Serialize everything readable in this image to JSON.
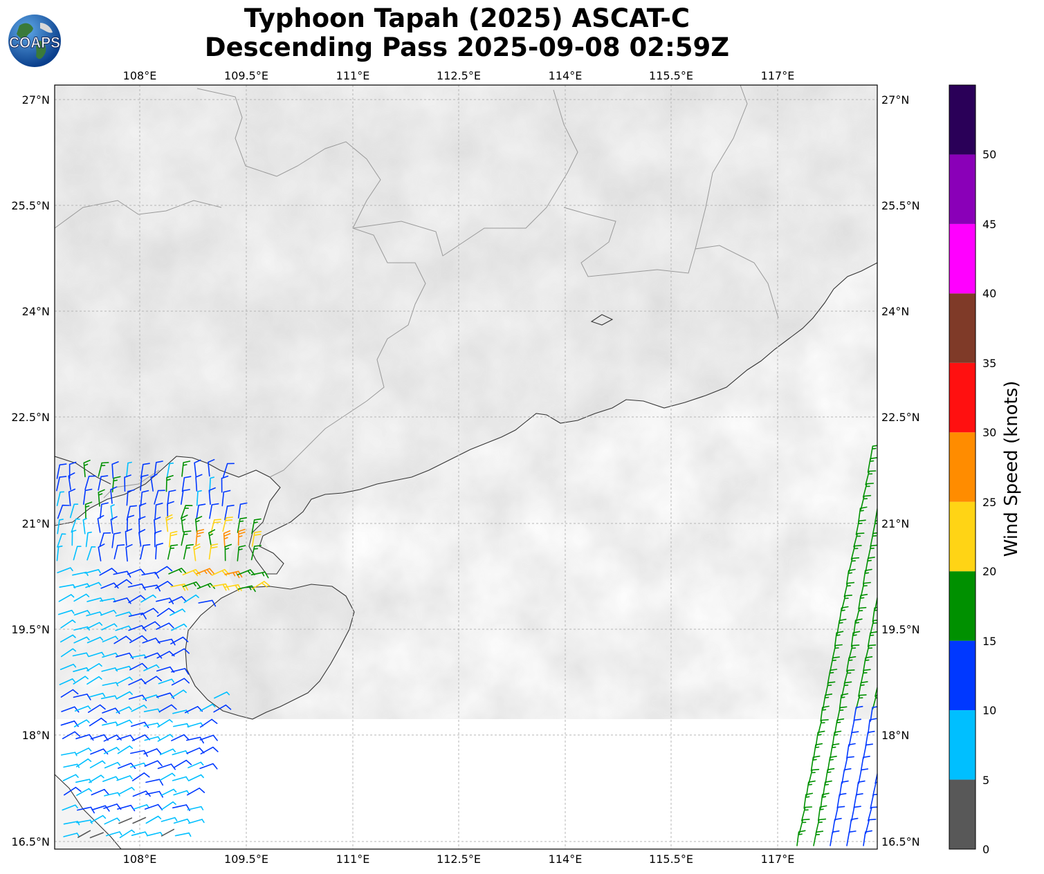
{
  "title": {
    "line1": "Typhoon Tapah (2025) ASCAT-C",
    "line2": "Descending Pass 2025-09-08 02:59Z"
  },
  "logo": {
    "text": "COAPS",
    "icon": "globe-icon"
  },
  "map": {
    "lon_ticks": [
      "108°E",
      "109.5°E",
      "111°E",
      "112.5°E",
      "114°E",
      "115.5°E",
      "117°E"
    ],
    "lat_ticks": [
      "27°N",
      "25.5°N",
      "24°N",
      "22.5°N",
      "21°N",
      "19.5°N",
      "18°N",
      "16.5°N"
    ],
    "extent": {
      "lon": [
        106.8,
        118.4
      ],
      "lat": [
        16.4,
        27.2
      ]
    },
    "land_color": "#f4f4f4",
    "ocean_color": "#ffffff",
    "gridlines": true
  },
  "colorbar": {
    "label": "Wind Speed (knots)",
    "ticks": [
      "0",
      "5",
      "10",
      "15",
      "20",
      "25",
      "30",
      "35",
      "40",
      "45",
      "50"
    ],
    "bins": [
      {
        "min": 0,
        "max": 5,
        "color": "#585858"
      },
      {
        "min": 5,
        "max": 10,
        "color": "#00bfff"
      },
      {
        "min": 10,
        "max": 15,
        "color": "#0038ff"
      },
      {
        "min": 15,
        "max": 20,
        "color": "#009000"
      },
      {
        "min": 20,
        "max": 25,
        "color": "#ffd415"
      },
      {
        "min": 25,
        "max": 30,
        "color": "#ff8c00"
      },
      {
        "min": 30,
        "max": 35,
        "color": "#ff1010"
      },
      {
        "min": 35,
        "max": 40,
        "color": "#7f3a28"
      },
      {
        "min": 40,
        "max": 45,
        "color": "#ff00ff"
      },
      {
        "min": 45,
        "max": 50,
        "color": "#8a00b8"
      },
      {
        "min": 50,
        "max": 55,
        "color": "#2a0058"
      }
    ]
  }
}
